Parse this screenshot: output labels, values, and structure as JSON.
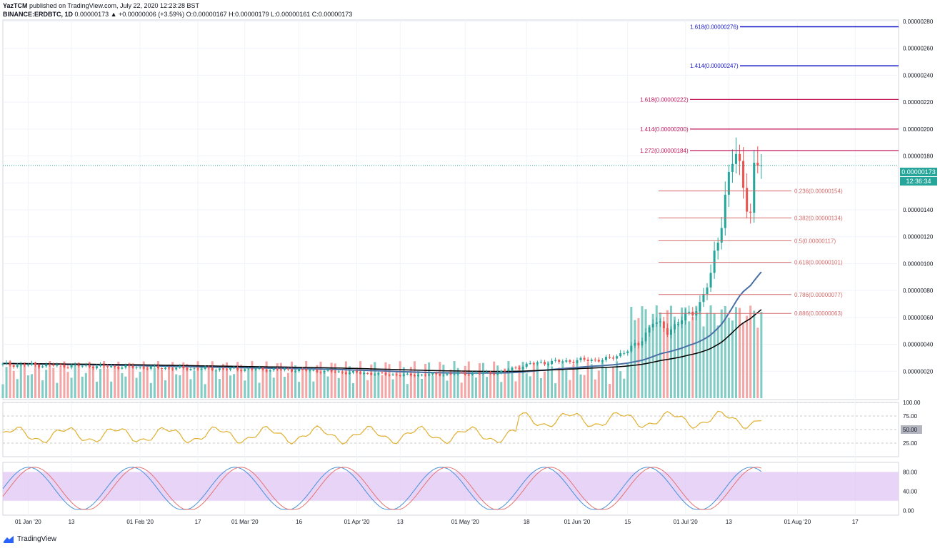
{
  "header": {
    "line1_user": "YazTCM",
    "line1_rest": "published on TradingView.com, July 22, 2020 12:23:28 BST",
    "line2_symbol": "BINANCE:ERDBTC, 1D",
    "line2_rest": "0.00000173 ▲ +0.00000006 (+3.59%) O:0.00000167 H:0.00000179 L:0.00000161 C:0.00000173"
  },
  "price_tag": {
    "value": "0.00000173",
    "countdown": "12:36:34"
  },
  "footer": {
    "brand": "TradingView"
  },
  "colors": {
    "up": "#26a69a",
    "down": "#ef5350",
    "volume_up": "#80cbc4",
    "volume_down": "#f4a6a6",
    "ema_black": "#000000",
    "ema_blue": "#4a6fa5",
    "ext_blue": "#1515c8",
    "ext_red": "#c2185b",
    "retr": "#d46a6a",
    "rsi": "#e0b030",
    "stoch_k": "#4a90d9",
    "stoch_d": "#e57373",
    "stoch_band": "#e1c9f5"
  },
  "chart_data": {
    "type": "candlestick",
    "symbol": "ERDBTC",
    "exchange": "BINANCE",
    "timeframe": "1D",
    "price_axis": {
      "min": 0.0,
      "max": 2.8e-06,
      "ticks": [
        "0.00000280",
        "0.00000260",
        "0.00000240",
        "0.00000220",
        "0.00000200",
        "0.00000180",
        "0.00000160",
        "0.00000140",
        "0.00000120",
        "0.00000100",
        "0.00000080",
        "0.00000060",
        "0.00000040",
        "0.00000020"
      ]
    },
    "x_ticks": [
      {
        "label": "01 Jan '20",
        "date": "2020-01-01"
      },
      {
        "label": "13",
        "date": "2020-01-13"
      },
      {
        "label": "01 Feb '20",
        "date": "2020-02-01"
      },
      {
        "label": "17",
        "date": "2020-02-17"
      },
      {
        "label": "01 Mar '20",
        "date": "2020-03-01"
      },
      {
        "label": "16",
        "date": "2020-03-16"
      },
      {
        "label": "01 Apr '20",
        "date": "2020-04-01"
      },
      {
        "label": "13",
        "date": "2020-04-13"
      },
      {
        "label": "01 May '20",
        "date": "2020-05-01"
      },
      {
        "label": "18",
        "date": "2020-05-18"
      },
      {
        "label": "01 Jun '20",
        "date": "2020-06-01"
      },
      {
        "label": "15",
        "date": "2020-06-15"
      },
      {
        "label": "01 Jul '20",
        "date": "2020-07-01"
      },
      {
        "label": "13",
        "date": "2020-07-13"
      },
      {
        "label": "01 Aug '20",
        "date": "2020-08-01"
      },
      {
        "label": "17",
        "date": "2020-08-17"
      }
    ],
    "x_range": [
      "2019-12-25",
      "2020-08-29"
    ],
    "key_points": [
      {
        "date": "2019-12-25",
        "close": 2.5e-07
      },
      {
        "date": "2020-01-15",
        "close": 2.4e-07
      },
      {
        "date": "2020-02-15",
        "close": 2.2e-07
      },
      {
        "date": "2020-03-15",
        "close": 2.1e-07
      },
      {
        "date": "2020-04-15",
        "close": 1.7e-07
      },
      {
        "date": "2020-05-10",
        "close": 1.9e-07
      },
      {
        "date": "2020-05-20",
        "close": 2.6e-07
      },
      {
        "date": "2020-06-01",
        "close": 2.8e-07
      },
      {
        "date": "2020-06-10",
        "close": 2.9e-07
      },
      {
        "date": "2020-06-18",
        "close": 4e-07
      },
      {
        "date": "2020-06-22",
        "close": 5.7e-07
      },
      {
        "date": "2020-06-26",
        "close": 5e-07
      },
      {
        "date": "2020-07-01",
        "close": 6e-07
      },
      {
        "date": "2020-07-05",
        "close": 7e-07
      },
      {
        "date": "2020-07-08",
        "close": 9e-07
      },
      {
        "date": "2020-07-10",
        "close": 1.2e-06
      },
      {
        "date": "2020-07-12",
        "close": 1.5e-06
      },
      {
        "date": "2020-07-14",
        "close": 1.75e-06
      },
      {
        "date": "2020-07-15",
        "close": 1.8e-06
      },
      {
        "date": "2020-07-17",
        "close": 1.58e-06
      },
      {
        "date": "2020-07-19",
        "close": 1.4e-06
      },
      {
        "date": "2020-07-20",
        "close": 1.67e-06
      },
      {
        "date": "2020-07-22",
        "close": 1.73e-06
      }
    ],
    "last_price": 1.73e-06,
    "fib_extensions_blue": [
      {
        "label": "1.618(0.00000276)",
        "price": 2.76e-06
      },
      {
        "label": "1.414(0.00000247)",
        "price": 2.47e-06
      }
    ],
    "fib_extensions_red": [
      {
        "label": "1.618(0.00000222)",
        "price": 2.22e-06
      },
      {
        "label": "1.414(0.00000200)",
        "price": 2e-06
      },
      {
        "label": "1.272(0.00000184)",
        "price": 1.84e-06
      }
    ],
    "fib_retracements": [
      {
        "label": "0.236(0.00000154)",
        "price": 1.54e-06
      },
      {
        "label": "0.382(0.00000134)",
        "price": 1.34e-06
      },
      {
        "label": "0.5(0.00000117)",
        "price": 1.17e-06
      },
      {
        "label": "0.618(0.00000101)",
        "price": 1.01e-06
      },
      {
        "label": "0.786(0.00000077)",
        "price": 7.7e-07
      },
      {
        "label": "0.886(0.00000063)",
        "price": 6.3e-07
      }
    ],
    "rsi": {
      "axis_ticks": [
        "100.00",
        "75.00",
        "50.00",
        "25.00"
      ],
      "range": [
        0,
        100
      ],
      "current": 50.0,
      "current_label": "50.00"
    },
    "stoch_rsi": {
      "axis_ticks": [
        "80.00",
        "40.00",
        "0.00"
      ],
      "range": [
        -10,
        100
      ],
      "band": [
        20,
        80
      ]
    }
  }
}
